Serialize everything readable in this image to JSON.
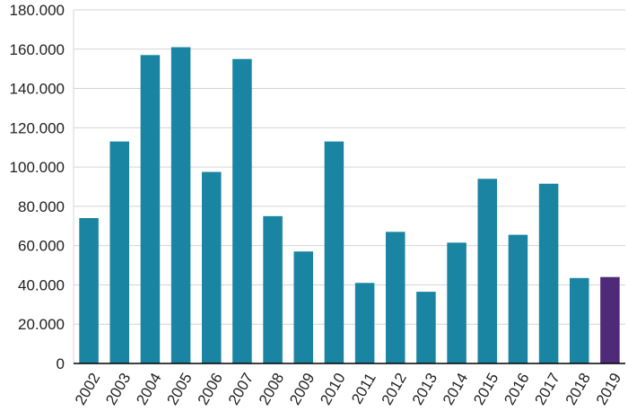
{
  "chart_data": {
    "type": "bar",
    "title": "",
    "xlabel": "",
    "ylabel": "",
    "categories": [
      "2002",
      "2003",
      "2004",
      "2005",
      "2006",
      "2007",
      "2008",
      "2009",
      "2010",
      "2011",
      "2012",
      "2013",
      "2014",
      "2015",
      "2016",
      "2017",
      "2018",
      "2019"
    ],
    "values": [
      74000,
      113000,
      157000,
      161000,
      97500,
      155000,
      75000,
      57000,
      113000,
      41000,
      67000,
      36500,
      61500,
      94000,
      65500,
      91500,
      43500,
      44000
    ],
    "y_tick_values": [
      0,
      20000,
      40000,
      60000,
      80000,
      100000,
      120000,
      140000,
      160000,
      180000
    ],
    "y_tick_labels": [
      "0",
      "20.000",
      "40.000",
      "60.000",
      "80.000",
      "100.000",
      "120.000",
      "140.000",
      "160.000",
      "180.000"
    ],
    "ylim": [
      0,
      180000
    ],
    "grid": true,
    "legend": "none",
    "colors": {
      "bar": "#1a84a3",
      "highlight": "#4e2a78",
      "highlight_category": "2019",
      "grid": "#d4d4d4",
      "axis": "#000000"
    }
  }
}
